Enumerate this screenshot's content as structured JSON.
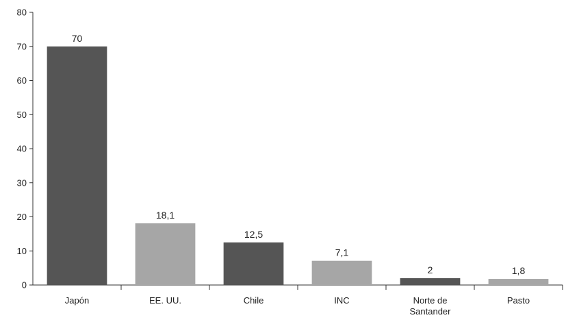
{
  "chart_data": {
    "type": "bar",
    "title": "",
    "xlabel": "",
    "ylabel": "",
    "ylim": [
      0,
      80
    ],
    "yticks": [
      0,
      10,
      20,
      30,
      40,
      50,
      60,
      70,
      80
    ],
    "grid": false,
    "categories": [
      [
        "Japón"
      ],
      [
        "EE. UU."
      ],
      [
        "Chile"
      ],
      [
        "INC"
      ],
      [
        "Norte de",
        "Santander"
      ],
      [
        "Pasto"
      ]
    ],
    "values": [
      70,
      18.1,
      12.5,
      7.1,
      2,
      1.8
    ],
    "value_labels": [
      "70",
      "18,1",
      "12,5",
      "7,1",
      "2",
      "1,8"
    ],
    "bar_colors": [
      "#555555",
      "#a6a6a6",
      "#555555",
      "#a6a6a6",
      "#555555",
      "#a6a6a6"
    ],
    "axis_color": "#333333",
    "text_color": "#222222"
  }
}
